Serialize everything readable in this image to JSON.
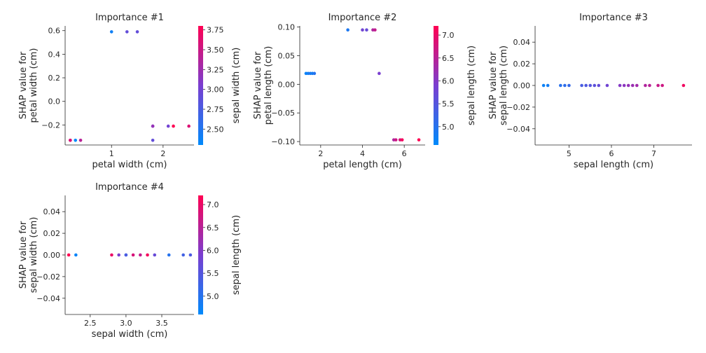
{
  "colors": {
    "low": "#008afb",
    "mid": "#7a3ed0",
    "high": "#ff0052",
    "axis": "#262626"
  },
  "chart_data": [
    {
      "type": "scatter",
      "title": "Importance #1",
      "xlabel": "petal width (cm)",
      "ylabel": [
        "SHAP value for",
        "petal width (cm)"
      ],
      "xlim": [
        0.1,
        2.6
      ],
      "ylim": [
        -0.37,
        0.64
      ],
      "xticks": [
        1,
        2
      ],
      "yticks": [
        -0.2,
        0.0,
        0.2,
        0.4,
        0.6
      ],
      "xtick_labels": [
        "1",
        "2"
      ],
      "ytick_labels": [
        "−0.2",
        "0.0",
        "0.2",
        "0.4",
        "0.6"
      ],
      "colorbar": {
        "label": "sepal width (cm)",
        "range": [
          2.3,
          3.8
        ],
        "ticks": [
          2.5,
          2.75,
          3.0,
          3.25,
          3.5,
          3.75
        ],
        "tick_labels": [
          "2.50",
          "2.75",
          "3.00",
          "3.25",
          "3.50",
          "3.75"
        ]
      },
      "points": [
        [
          0.2,
          -0.33,
          3.4
        ],
        [
          0.3,
          -0.33,
          2.3
        ],
        [
          0.4,
          -0.33,
          3.4
        ],
        [
          0.2,
          -0.33,
          3.6
        ],
        [
          1.0,
          0.59,
          2.4
        ],
        [
          1.3,
          0.59,
          2.9
        ],
        [
          1.5,
          0.59,
          2.9
        ],
        [
          1.8,
          -0.21,
          3.0
        ],
        [
          1.8,
          -0.21,
          3.2
        ],
        [
          1.8,
          -0.33,
          2.9
        ],
        [
          2.1,
          -0.21,
          3.0
        ],
        [
          2.2,
          -0.21,
          3.8
        ],
        [
          2.5,
          -0.21,
          3.6
        ]
      ]
    },
    {
      "type": "scatter",
      "title": "Importance #2",
      "xlabel": "petal length (cm)",
      "ylabel": [
        "SHAP value for",
        "petal length (cm)"
      ],
      "xlim": [
        1.0,
        7.0
      ],
      "ylim": [
        -0.106,
        0.102
      ],
      "xticks": [
        2,
        4,
        6
      ],
      "yticks": [
        -0.1,
        -0.05,
        0.0,
        0.05,
        0.1
      ],
      "xtick_labels": [
        "2",
        "4",
        "6"
      ],
      "ytick_labels": [
        "−0.10",
        "−0.05",
        "0.00",
        "0.05",
        "0.10"
      ],
      "colorbar": {
        "label": "sepal length (cm)",
        "range": [
          4.6,
          7.2
        ],
        "ticks": [
          5.0,
          5.5,
          6.0,
          6.5,
          7.0
        ],
        "tick_labels": [
          "5.0",
          "5.5",
          "6.0",
          "6.5",
          "7.0"
        ]
      },
      "points": [
        [
          1.3,
          0.019,
          4.7
        ],
        [
          1.4,
          0.019,
          4.8
        ],
        [
          1.5,
          0.019,
          4.9
        ],
        [
          1.6,
          0.019,
          4.8
        ],
        [
          1.7,
          0.019,
          5.0
        ],
        [
          3.3,
          0.095,
          4.9
        ],
        [
          4.0,
          0.095,
          5.8
        ],
        [
          4.2,
          0.095,
          5.7
        ],
        [
          4.5,
          0.095,
          6.4
        ],
        [
          4.6,
          0.095,
          6.6
        ],
        [
          4.8,
          0.019,
          5.9
        ],
        [
          5.5,
          -0.097,
          6.4
        ],
        [
          5.6,
          -0.097,
          6.7
        ],
        [
          5.8,
          -0.097,
          6.8
        ],
        [
          5.9,
          -0.097,
          7.1
        ],
        [
          6.7,
          -0.097,
          7.2
        ]
      ]
    },
    {
      "type": "scatter",
      "title": "Importance #3",
      "xlabel": "sepal length (cm)",
      "ylabel": [
        "SHAP value for",
        "sepal length (cm)"
      ],
      "xlim": [
        4.2,
        7.9
      ],
      "ylim": [
        -0.055,
        0.055
      ],
      "xticks": [
        5,
        6,
        7
      ],
      "yticks": [
        -0.04,
        -0.02,
        0.0,
        0.02,
        0.04
      ],
      "xtick_labels": [
        "5",
        "6",
        "7"
      ],
      "ytick_labels": [
        "−0.04",
        "−0.02",
        "0.00",
        "0.02",
        "0.04"
      ],
      "colorbar": null,
      "points": [
        [
          4.4,
          0.0,
          4.4
        ],
        [
          4.5,
          0.0,
          4.5
        ],
        [
          4.8,
          0.0,
          4.8
        ],
        [
          4.9,
          0.0,
          4.9
        ],
        [
          5.0,
          0.0,
          5.0
        ],
        [
          5.3,
          0.0,
          5.3
        ],
        [
          5.4,
          0.0,
          5.4
        ],
        [
          5.5,
          0.0,
          5.5
        ],
        [
          5.6,
          0.0,
          5.6
        ],
        [
          5.7,
          0.0,
          5.7
        ],
        [
          5.9,
          0.0,
          5.9
        ],
        [
          6.2,
          0.0,
          6.2
        ],
        [
          6.3,
          0.0,
          6.3
        ],
        [
          6.4,
          0.0,
          6.4
        ],
        [
          6.5,
          0.0,
          6.5
        ],
        [
          6.6,
          0.0,
          6.6
        ],
        [
          6.8,
          0.0,
          6.8
        ],
        [
          6.9,
          0.0,
          6.9
        ],
        [
          7.1,
          0.0,
          7.1
        ],
        [
          7.2,
          0.0,
          7.2
        ],
        [
          7.7,
          0.0,
          7.7
        ]
      ]
    },
    {
      "type": "scatter",
      "title": "Importance #4",
      "xlabel": "sepal width (cm)",
      "ylabel": [
        "SHAP value for",
        "sepal width (cm)"
      ],
      "xlim": [
        2.15,
        3.95
      ],
      "ylim": [
        -0.055,
        0.055
      ],
      "xticks": [
        2.5,
        3.0,
        3.5
      ],
      "yticks": [
        -0.04,
        -0.02,
        0.0,
        0.02,
        0.04
      ],
      "xtick_labels": [
        "2.5",
        "3.0",
        "3.5"
      ],
      "ytick_labels": [
        "−0.04",
        "−0.02",
        "0.00",
        "0.02",
        "0.04"
      ],
      "colorbar": {
        "label": "sepal length (cm)",
        "range": [
          4.6,
          7.2
        ],
        "ticks": [
          5.0,
          5.5,
          6.0,
          6.5,
          7.0
        ],
        "tick_labels": [
          "5.0",
          "5.5",
          "6.0",
          "6.5",
          "7.0"
        ]
      },
      "points": [
        [
          2.2,
          0.0,
          7.2
        ],
        [
          2.3,
          0.0,
          4.7
        ],
        [
          2.8,
          0.0,
          7.0
        ],
        [
          2.9,
          0.0,
          5.9
        ],
        [
          3.0,
          0.0,
          4.9
        ],
        [
          3.0,
          0.0,
          5.4
        ],
        [
          3.1,
          0.0,
          6.8
        ],
        [
          3.2,
          0.0,
          6.6
        ],
        [
          3.3,
          0.0,
          7.1
        ],
        [
          3.4,
          0.0,
          5.7
        ],
        [
          3.6,
          0.0,
          5.0
        ],
        [
          3.8,
          0.0,
          5.3
        ],
        [
          3.9,
          0.0,
          5.4
        ]
      ]
    }
  ]
}
